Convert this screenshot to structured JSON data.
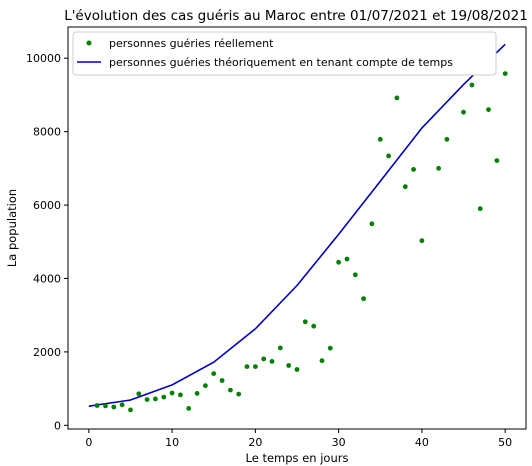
{
  "chart_data": {
    "type": "scatter",
    "title": "L'évolution des cas guéris au Maroc entre 01/07/2021 et 19/08/2021",
    "xlabel": "Le temps en jours",
    "ylabel": "La population",
    "xlim": [
      -2.5,
      52.5
    ],
    "ylim": [
      -100,
      10850
    ],
    "xticks": [
      0,
      10,
      20,
      30,
      40,
      50
    ],
    "yticks": [
      0,
      2000,
      4000,
      6000,
      8000,
      10000
    ],
    "legend_position": "top-left",
    "grid": false,
    "series": [
      {
        "name": "personnes guéries réellement",
        "kind": "scatter",
        "color": "#008000",
        "x": [
          1,
          2,
          3,
          4,
          5,
          6,
          7,
          8,
          9,
          10,
          11,
          12,
          13,
          14,
          15,
          16,
          17,
          18,
          19,
          20,
          21,
          22,
          23,
          24,
          25,
          26,
          27,
          28,
          29,
          30,
          31,
          32,
          33,
          34,
          35,
          36,
          37,
          38,
          39,
          40,
          41,
          42,
          43,
          44,
          45,
          46,
          47,
          48,
          49,
          50
        ],
        "y": [
          540,
          530,
          500,
          560,
          420,
          860,
          700,
          720,
          770,
          880,
          830,
          460,
          870,
          1080,
          1410,
          1220,
          960,
          850,
          1600,
          1600,
          1810,
          1740,
          2110,
          1630,
          1520,
          2820,
          2700,
          1760,
          2100,
          4440,
          4530,
          4100,
          3450,
          5490,
          7790,
          7340,
          8920,
          6500,
          6970,
          5030,
          null,
          7000,
          7790,
          null,
          8530,
          9270,
          5900,
          8600,
          7210,
          9580
        ]
      },
      {
        "name": "personnes guéries théoriquement en tenant compte de temps",
        "kind": "line",
        "color": "#0000bb",
        "x": [
          0,
          5,
          10,
          15,
          20,
          25,
          30,
          35,
          40,
          45,
          50
        ],
        "y": [
          520,
          690,
          1100,
          1720,
          2630,
          3810,
          5200,
          6650,
          8100,
          9280,
          10380
        ]
      }
    ]
  }
}
